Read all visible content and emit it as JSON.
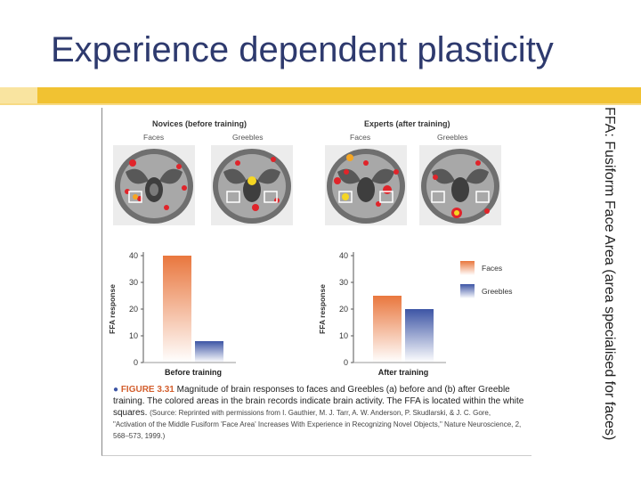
{
  "slide": {
    "title": "Experience dependent plasticity",
    "side_note": "FFA: Fusiform Face Area (area specialised for faces)"
  },
  "figure": {
    "novices_heading": "Novices (before training)",
    "experts_heading": "Experts (after training)",
    "panel_labels": [
      "Faces",
      "Greebles",
      "Faces",
      "Greebles"
    ],
    "caption_number": "FIGURE 3.31",
    "caption_text": "Magnitude of brain responses to faces and Greebles (a) before and (b) after Greeble training. The colored areas in the brain records indicate brain activity. The FFA is located within the white squares.",
    "caption_source": "(Source: Reprinted with permissions from I. Gauthier, M. J. Tarr, A. W. Anderson, P. Skudlarski, & J. C. Gore, \"Activation of the Middle Fusiform 'Face Area' Increases With Experience in Recognizing Novel Objects,\" Nature Neuroscience, 2, 568–573, 1999.)",
    "colors": {
      "faces": "#e9773e",
      "greebles": "#3d55a5",
      "activation": "#e0242a"
    }
  },
  "chart_data": [
    {
      "type": "bar",
      "categories": [
        "Faces",
        "Greebles"
      ],
      "values": [
        40,
        8
      ],
      "xlabel": "Before training",
      "ylabel": "FFA response",
      "ylim": [
        0,
        40
      ],
      "yticks": [
        0,
        10,
        20,
        30,
        40
      ]
    },
    {
      "type": "bar",
      "categories": [
        "Faces",
        "Greebles"
      ],
      "values": [
        25,
        20
      ],
      "xlabel": "After training",
      "ylabel": "FFA response",
      "ylim": [
        0,
        40
      ],
      "yticks": [
        0,
        10,
        20,
        30,
        40
      ],
      "legend": [
        "Faces",
        "Greebles"
      ]
    }
  ]
}
